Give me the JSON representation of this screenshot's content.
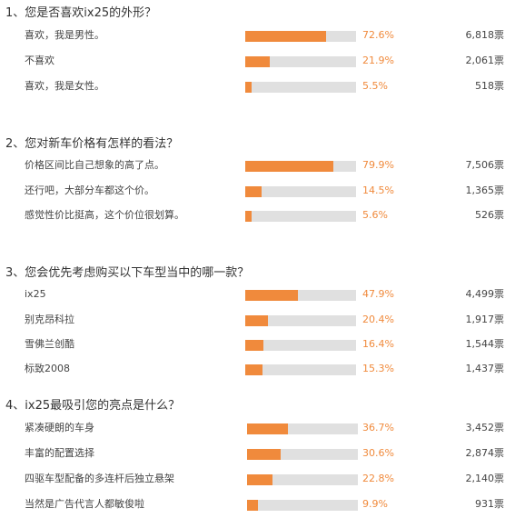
{
  "colors": {
    "bar_fill": "#f08a3c",
    "bar_track": "#e0e0e0",
    "percent_text": "#f08a3c"
  },
  "questions": [
    {
      "title": "1、您是否喜欢ix25的外形？",
      "options": [
        {
          "label": "喜欢，我是男性。",
          "percent": "72.6%",
          "fraction": 0.726,
          "votes": "6,818票"
        },
        {
          "label": "不喜欢",
          "percent": "21.9%",
          "fraction": 0.219,
          "votes": "2,061票"
        },
        {
          "label": "喜欢，我是女性。",
          "percent": "5.5%",
          "fraction": 0.055,
          "votes": "518票"
        }
      ]
    },
    {
      "title": "2、您对新车价格有怎样的看法？",
      "options": [
        {
          "label": "价格区间比自己想象的高了点。",
          "percent": "79.9%",
          "fraction": 0.799,
          "votes": "7,506票"
        },
        {
          "label": "还行吧，大部分车都这个价。",
          "percent": "14.5%",
          "fraction": 0.145,
          "votes": "1,365票"
        },
        {
          "label": "感觉性价比挺高，这个价位很划算。",
          "percent": "5.6%",
          "fraction": 0.056,
          "votes": "526票"
        }
      ]
    },
    {
      "title": "3、您会优先考虑购买以下车型当中的哪一款？",
      "options": [
        {
          "label": "ix25",
          "percent": "47.9%",
          "fraction": 0.479,
          "votes": "4,499票"
        },
        {
          "label": "别克昂科拉",
          "percent": "20.4%",
          "fraction": 0.204,
          "votes": "1,917票"
        },
        {
          "label": "雪佛兰创酷",
          "percent": "16.4%",
          "fraction": 0.164,
          "votes": "1,544票"
        },
        {
          "label": "标致2008",
          "percent": "15.3%",
          "fraction": 0.153,
          "votes": "1,437票"
        }
      ]
    },
    {
      "title": "4、ix25最吸引您的亮点是什么？",
      "options": [
        {
          "label": "紧凑硬朗的车身",
          "percent": "36.7%",
          "fraction": 0.367,
          "votes": "3,452票"
        },
        {
          "label": "丰富的配置选择",
          "percent": "30.6%",
          "fraction": 0.306,
          "votes": "2,874票"
        },
        {
          "label": "四驱车型配备的多连杆后独立悬架",
          "percent": "22.8%",
          "fraction": 0.228,
          "votes": "2,140票"
        },
        {
          "label": "当然是广告代言人都敏俊啦",
          "percent": "9.9%",
          "fraction": 0.099,
          "votes": "931票"
        }
      ]
    }
  ]
}
